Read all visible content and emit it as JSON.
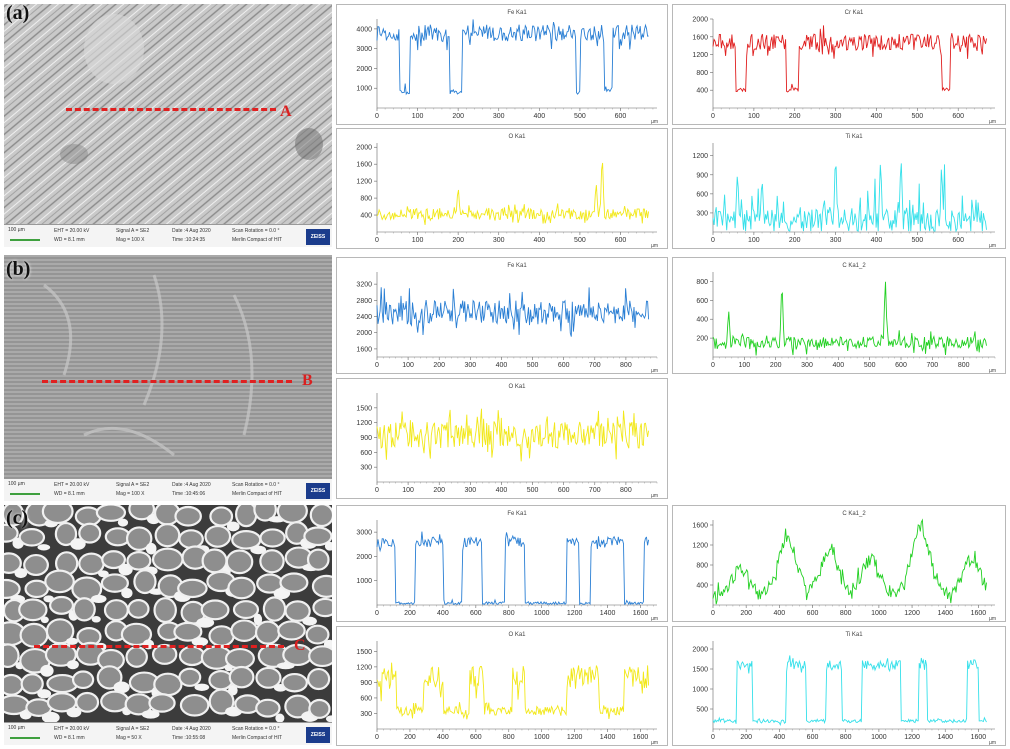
{
  "panels": [
    {
      "id": "a",
      "label": "(a)",
      "line_label": "A",
      "info": {
        "eht": "EHT = 20.00 kV",
        "wd": "WD = 8.1 mm",
        "signal": "Signal A = SE2",
        "mag": "Mag = 100 X",
        "date": "Date :4 Aug 2020",
        "time": "Time :10:24:35",
        "rotation": "Scan Rotation = 0.0 °",
        "instrument": "Merlin Compact of HIT",
        "scale": "100 µm"
      }
    },
    {
      "id": "b",
      "label": "(b)",
      "line_label": "B",
      "info": {
        "eht": "EHT = 20.00 kV",
        "wd": "WD = 8.1 mm",
        "signal": "Signal A = SE2",
        "mag": "Mag = 100 X",
        "date": "Date :4 Aug 2020",
        "time": "Time :10:45:06",
        "rotation": "Scan Rotation = 0.0 °",
        "instrument": "Merlin Compact of HIT",
        "scale": "100 µm"
      }
    },
    {
      "id": "c",
      "label": "(c)",
      "line_label": "C",
      "info": {
        "eht": "EHT = 20.00 kV",
        "wd": "WD = 8.1 mm",
        "signal": "Signal A = SE2",
        "mag": "Mag = 50 X",
        "date": "Date :4 Aug 2020",
        "time": "Time :10:55:08",
        "rotation": "Scan Rotation = 0.0 °",
        "instrument": "Merlin Compact of HIT",
        "scale": "100 µm"
      }
    }
  ],
  "brand": "ZEISS",
  "colors": {
    "Fe": "#2a7fd4",
    "Cr": "#e02020",
    "O": "#f2e81a",
    "Ti": "#35e0ea",
    "C": "#22d022",
    "scan_line": "#e02020"
  },
  "chart_data": [
    {
      "type": "line",
      "title": "Fe Ka1",
      "xunit": "µm",
      "xlim": [
        0,
        690
      ],
      "ylim": [
        0,
        4500
      ],
      "xticks": [
        0,
        100,
        200,
        300,
        400,
        500,
        600
      ],
      "yticks": [
        1000,
        2000,
        3000,
        4000
      ],
      "pattern": "dips",
      "base": 3800,
      "low": 700,
      "noise": 600,
      "dips": [
        [
          55,
          80
        ],
        [
          180,
          210
        ],
        [
          560,
          580
        ],
        [
          490,
          500
        ]
      ],
      "color": "Fe"
    },
    {
      "type": "line",
      "title": "Cr Ka1",
      "xunit": "µm",
      "xlim": [
        0,
        690
      ],
      "ylim": [
        0,
        2000
      ],
      "xticks": [
        0,
        100,
        200,
        300,
        400,
        500,
        600
      ],
      "yticks": [
        400,
        800,
        1200,
        1600,
        2000
      ],
      "pattern": "dips",
      "base": 1480,
      "low": 350,
      "noise": 260,
      "dips": [
        [
          55,
          80
        ],
        [
          180,
          210
        ],
        [
          560,
          580
        ]
      ],
      "color": "Cr"
    },
    {
      "type": "line",
      "title": "O Ka1",
      "xunit": "µm",
      "xlim": [
        0,
        690
      ],
      "ylim": [
        0,
        2100
      ],
      "xticks": [
        0,
        100,
        200,
        300,
        400,
        500,
        600
      ],
      "yticks": [
        400,
        800,
        1200,
        1600,
        2000
      ],
      "pattern": "spikes",
      "base": 420,
      "noise": 180,
      "spikes": [
        [
          555,
          1950
        ],
        [
          200,
          1100
        ],
        [
          540,
          1200
        ]
      ],
      "color": "O"
    },
    {
      "type": "line",
      "title": "Ti Ka1",
      "xunit": "µm",
      "xlim": [
        0,
        690
      ],
      "ylim": [
        0,
        1400
      ],
      "xticks": [
        0,
        100,
        200,
        300,
        400,
        500,
        600
      ],
      "yticks": [
        300,
        600,
        900,
        1200
      ],
      "pattern": "spiky",
      "base": 180,
      "noise": 260,
      "spikes": [
        [
          300,
          1300
        ],
        [
          410,
          1200
        ],
        [
          460,
          1250
        ],
        [
          560,
          900
        ],
        [
          120,
          900
        ],
        [
          60,
          1000
        ]
      ],
      "color": "Ti"
    },
    {
      "type": "line",
      "title": "Fe Ka1",
      "xunit": "µm",
      "xlim": [
        0,
        900
      ],
      "ylim": [
        1400,
        3500
      ],
      "xticks": [
        0,
        100,
        200,
        300,
        400,
        500,
        600,
        700,
        800
      ],
      "yticks": [
        1600,
        2000,
        2400,
        2800,
        3200
      ],
      "pattern": "noise",
      "base": 2500,
      "noise": 420,
      "color": "Fe"
    },
    {
      "type": "line",
      "title": "C Ka1_2",
      "xunit": "µm",
      "xlim": [
        0,
        900
      ],
      "ylim": [
        0,
        900
      ],
      "xticks": [
        0,
        100,
        200,
        300,
        400,
        500,
        600,
        700,
        800
      ],
      "yticks": [
        200,
        400,
        600,
        800
      ],
      "pattern": "spikes",
      "base": 150,
      "noise": 90,
      "spikes": [
        [
          220,
          850
        ],
        [
          550,
          870
        ],
        [
          50,
          500
        ],
        [
          880,
          450
        ]
      ],
      "color": "C"
    },
    {
      "type": "line",
      "title": "O Ka1",
      "xunit": "µm",
      "xlim": [
        0,
        900
      ],
      "ylim": [
        0,
        1800
      ],
      "xticks": [
        0,
        100,
        200,
        300,
        400,
        500,
        600,
        700,
        800
      ],
      "yticks": [
        300,
        600,
        900,
        1200,
        1500
      ],
      "pattern": "noise",
      "base": 950,
      "noise": 380,
      "color": "O"
    },
    {
      "type": "line",
      "title": "Fe Ka1",
      "xunit": "µm",
      "xlim": [
        0,
        1700
      ],
      "ylim": [
        0,
        3500
      ],
      "xticks": [
        0,
        200,
        400,
        600,
        800,
        1000,
        1200,
        1400,
        1600
      ],
      "yticks": [
        1000,
        2000,
        3000
      ],
      "pattern": "square",
      "base": 2600,
      "low": 60,
      "noise": 300,
      "highs": [
        [
          0,
          110
        ],
        [
          230,
          400
        ],
        [
          520,
          640
        ],
        [
          780,
          900
        ],
        [
          1150,
          1230
        ],
        [
          1300,
          1500
        ],
        [
          1620,
          1700
        ]
      ],
      "color": "Fe"
    },
    {
      "type": "line",
      "title": "C Ka1_2",
      "xunit": "µm",
      "xlim": [
        0,
        1700
      ],
      "ylim": [
        0,
        1700
      ],
      "xticks": [
        0,
        200,
        400,
        600,
        800,
        1000,
        1200,
        1400,
        1600
      ],
      "yticks": [
        400,
        800,
        1200,
        1600
      ],
      "pattern": "humps",
      "base": 200,
      "noise": 180,
      "humps": [
        [
          170,
          700
        ],
        [
          450,
          1300
        ],
        [
          700,
          1000
        ],
        [
          950,
          900
        ],
        [
          1250,
          1550
        ],
        [
          1560,
          900
        ]
      ],
      "color": "C"
    },
    {
      "type": "line",
      "title": "O Ka1",
      "xunit": "µm",
      "xlim": [
        0,
        1700
      ],
      "ylim": [
        0,
        1700
      ],
      "xticks": [
        0,
        200,
        400,
        600,
        800,
        1000,
        1200,
        1400,
        1600
      ],
      "yticks": [
        300,
        600,
        900,
        1200,
        1500
      ],
      "pattern": "square",
      "base": 1000,
      "low": 350,
      "noise": 330,
      "highs": [
        [
          0,
          120
        ],
        [
          280,
          400
        ],
        [
          560,
          650
        ],
        [
          820,
          900
        ],
        [
          1150,
          1350
        ],
        [
          1500,
          1700
        ]
      ],
      "color": "O"
    },
    {
      "type": "line",
      "title": "Ti Ka1",
      "xunit": "µm",
      "xlim": [
        0,
        1700
      ],
      "ylim": [
        0,
        2200
      ],
      "xticks": [
        0,
        200,
        400,
        600,
        800,
        1000,
        1200,
        1400,
        1600
      ],
      "yticks": [
        500,
        1000,
        1500,
        2000
      ],
      "pattern": "square",
      "base": 1600,
      "low": 200,
      "noise": 180,
      "highs": [
        [
          140,
          240
        ],
        [
          440,
          560
        ],
        [
          680,
          780
        ],
        [
          900,
          1130
        ],
        [
          1240,
          1290
        ],
        [
          1530,
          1600
        ]
      ],
      "color": "Ti"
    }
  ]
}
